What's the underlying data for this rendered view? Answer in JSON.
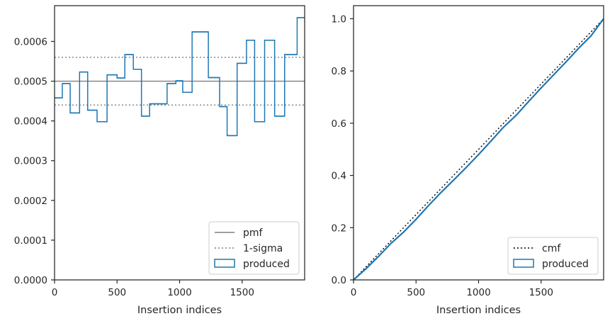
{
  "chart_data": [
    {
      "type": "histogram-step",
      "xlabel": "Insertion indices",
      "ylabel": "",
      "xlim": [
        0,
        2000
      ],
      "ylim": [
        0,
        0.00069
      ],
      "x_ticks": [
        0,
        500,
        1000,
        1500
      ],
      "x_tick_labels": [
        "0",
        "500",
        "1000",
        "1500"
      ],
      "y_ticks": [
        0,
        0.0001,
        0.0002,
        0.0003,
        0.0004,
        0.0005,
        0.0006
      ],
      "y_tick_labels": [
        "0.0000",
        "0.0001",
        "0.0002",
        "0.0003",
        "0.0004",
        "0.0005",
        "0.0006"
      ],
      "pmf": 0.0005,
      "sigma_band": [
        0.00044,
        0.00056
      ],
      "bin_edges": [
        0,
        62,
        125,
        200,
        265,
        340,
        420,
        500,
        562,
        630,
        695,
        760,
        900,
        970,
        1025,
        1100,
        1230,
        1320,
        1380,
        1460,
        1535,
        1600,
        1680,
        1760,
        1840,
        1940,
        2000
      ],
      "values": [
        0.000458,
        0.000494,
        0.00042,
        0.000523,
        0.000427,
        0.000398,
        0.000516,
        0.000508,
        0.000567,
        0.00053,
        0.000412,
        0.000443,
        0.000494,
        0.000501,
        0.000472,
        0.000624,
        0.000509,
        0.000436,
        0.000363,
        0.000545,
        0.000603,
        0.000398,
        0.000603,
        0.000412,
        0.000567,
        0.00066
      ],
      "series_color": "#1f77b4",
      "pmf_color": "#7f7f7f",
      "legend": {
        "position": "lower right",
        "entries": [
          {
            "label": "pmf",
            "style": "solid-line"
          },
          {
            "label": "1-sigma",
            "style": "dotted-line"
          },
          {
            "label": "produced",
            "style": "patch"
          }
        ]
      }
    },
    {
      "type": "line",
      "xlabel": "Insertion indices",
      "ylabel": "",
      "xlim": [
        0,
        2000
      ],
      "ylim": [
        0,
        1.05
      ],
      "x_ticks": [
        0,
        500,
        1000,
        1500
      ],
      "x_tick_labels": [
        "0",
        "500",
        "1000",
        "1500"
      ],
      "y_ticks": [
        0,
        0.2,
        0.4,
        0.6,
        0.8,
        1.0
      ],
      "y_tick_labels": [
        "0.0",
        "0.2",
        "0.4",
        "0.6",
        "0.8",
        "1.0"
      ],
      "cmf_line": {
        "x": [
          0,
          2000
        ],
        "y": [
          0,
          1.0
        ],
        "color": "#000000"
      },
      "produced_cdf": {
        "x": [
          0,
          100,
          200,
          300,
          400,
          500,
          600,
          700,
          800,
          900,
          1000,
          1100,
          1200,
          1300,
          1400,
          1500,
          1600,
          1700,
          1800,
          1900,
          2000
        ],
        "y": [
          0,
          0.043,
          0.09,
          0.14,
          0.183,
          0.232,
          0.285,
          0.335,
          0.382,
          0.43,
          0.48,
          0.532,
          0.585,
          0.63,
          0.683,
          0.735,
          0.785,
          0.835,
          0.887,
          0.935,
          1.0
        ],
        "color": "#1f77b4"
      },
      "legend": {
        "position": "lower right",
        "entries": [
          {
            "label": "cmf",
            "style": "dotted-line"
          },
          {
            "label": "produced",
            "style": "patch"
          }
        ]
      }
    }
  ]
}
